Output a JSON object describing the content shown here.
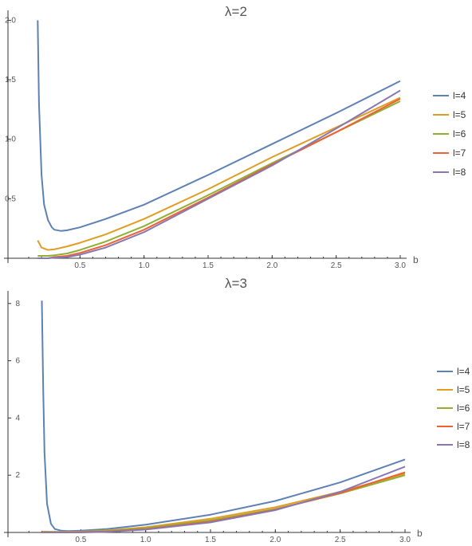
{
  "chart_data": [
    {
      "type": "line",
      "title": "λ=2",
      "xlabel": "b",
      "ylabel": "",
      "xlim": [
        0.0,
        3.0
      ],
      "ylim": [
        0.0,
        2.05
      ],
      "x_ticks": [
        "0.5",
        "1.0",
        "1.5",
        "2.0",
        "2.5",
        "3.0"
      ],
      "y_ticks": [
        "0.5",
        "1.0",
        "1.5",
        "2.0"
      ],
      "legend_position": "right",
      "series": [
        {
          "name": "l=4",
          "color": "#5e81b5",
          "x": [
            0.17,
            0.18,
            0.2,
            0.22,
            0.25,
            0.28,
            0.3,
            0.35,
            0.4,
            0.5,
            0.7,
            1.0,
            1.5,
            2.0,
            2.5,
            3.0
          ],
          "y": [
            2.0,
            1.3,
            0.7,
            0.45,
            0.32,
            0.26,
            0.24,
            0.23,
            0.235,
            0.26,
            0.33,
            0.45,
            0.7,
            0.96,
            1.22,
            1.49
          ]
        },
        {
          "name": "l=5",
          "color": "#e19c24",
          "x": [
            0.17,
            0.2,
            0.25,
            0.3,
            0.4,
            0.5,
            0.7,
            1.0,
            1.5,
            2.0,
            2.5,
            3.0
          ],
          "y": [
            0.15,
            0.09,
            0.07,
            0.075,
            0.1,
            0.13,
            0.2,
            0.33,
            0.58,
            0.85,
            1.1,
            1.35
          ]
        },
        {
          "name": "l=6",
          "color": "#8fb032",
          "x": [
            0.17,
            0.25,
            0.3,
            0.4,
            0.5,
            0.7,
            1.0,
            1.5,
            2.0,
            2.5,
            3.0
          ],
          "y": [
            0.02,
            0.02,
            0.025,
            0.04,
            0.07,
            0.14,
            0.27,
            0.53,
            0.8,
            1.06,
            1.32
          ]
        },
        {
          "name": "l=7",
          "color": "#eb6235",
          "x": [
            0.17,
            0.25,
            0.3,
            0.4,
            0.5,
            0.7,
            1.0,
            1.5,
            2.0,
            2.5,
            3.0
          ],
          "y": [
            0.0,
            0.0,
            0.01,
            0.02,
            0.045,
            0.11,
            0.24,
            0.51,
            0.79,
            1.06,
            1.34
          ]
        },
        {
          "name": "l=8",
          "color": "#8778b3",
          "x": [
            0.17,
            0.25,
            0.3,
            0.4,
            0.5,
            0.7,
            1.0,
            1.5,
            2.0,
            2.5,
            3.0
          ],
          "y": [
            0.0,
            0.0,
            0.005,
            0.01,
            0.03,
            0.09,
            0.22,
            0.5,
            0.78,
            1.09,
            1.41
          ]
        }
      ]
    },
    {
      "type": "line",
      "title": "λ=3",
      "xlabel": "b",
      "ylabel": "",
      "xlim": [
        0.0,
        3.0
      ],
      "ylim": [
        0.0,
        8.3
      ],
      "x_ticks": [
        "0.5",
        "1.0",
        "1.5",
        "2.0",
        "2.5",
        "3.0"
      ],
      "y_ticks": [
        "2",
        "4",
        "6",
        "8"
      ],
      "legend_position": "right",
      "series": [
        {
          "name": "l=4",
          "color": "#5e81b5",
          "x": [
            0.2,
            0.21,
            0.22,
            0.24,
            0.27,
            0.3,
            0.35,
            0.4,
            0.5,
            0.7,
            1.0,
            1.5,
            2.0,
            2.5,
            3.0
          ],
          "y": [
            8.1,
            5.0,
            2.8,
            1.0,
            0.3,
            0.12,
            0.06,
            0.05,
            0.06,
            0.12,
            0.27,
            0.62,
            1.1,
            1.75,
            2.55
          ]
        },
        {
          "name": "l=5",
          "color": "#e19c24",
          "x": [
            0.2,
            0.3,
            0.5,
            0.7,
            1.0,
            1.5,
            2.0,
            2.5,
            3.0
          ],
          "y": [
            0.03,
            0.02,
            0.03,
            0.07,
            0.18,
            0.48,
            0.88,
            1.42,
            2.05
          ]
        },
        {
          "name": "l=6",
          "color": "#8fb032",
          "x": [
            0.2,
            0.3,
            0.5,
            0.7,
            1.0,
            1.5,
            2.0,
            2.5,
            3.0
          ],
          "y": [
            0.01,
            0.01,
            0.02,
            0.05,
            0.15,
            0.42,
            0.82,
            1.36,
            2.0
          ]
        },
        {
          "name": "l=7",
          "color": "#eb6235",
          "x": [
            0.2,
            0.3,
            0.5,
            0.7,
            1.0,
            1.5,
            2.0,
            2.5,
            3.0
          ],
          "y": [
            0.0,
            0.0,
            0.01,
            0.03,
            0.12,
            0.38,
            0.8,
            1.38,
            2.1
          ]
        },
        {
          "name": "l=8",
          "color": "#8778b3",
          "x": [
            0.2,
            0.3,
            0.5,
            0.7,
            1.0,
            1.5,
            2.0,
            2.5,
            3.0
          ],
          "y": [
            0.0,
            0.0,
            0.0,
            0.02,
            0.1,
            0.35,
            0.78,
            1.42,
            2.3
          ]
        }
      ]
    }
  ]
}
